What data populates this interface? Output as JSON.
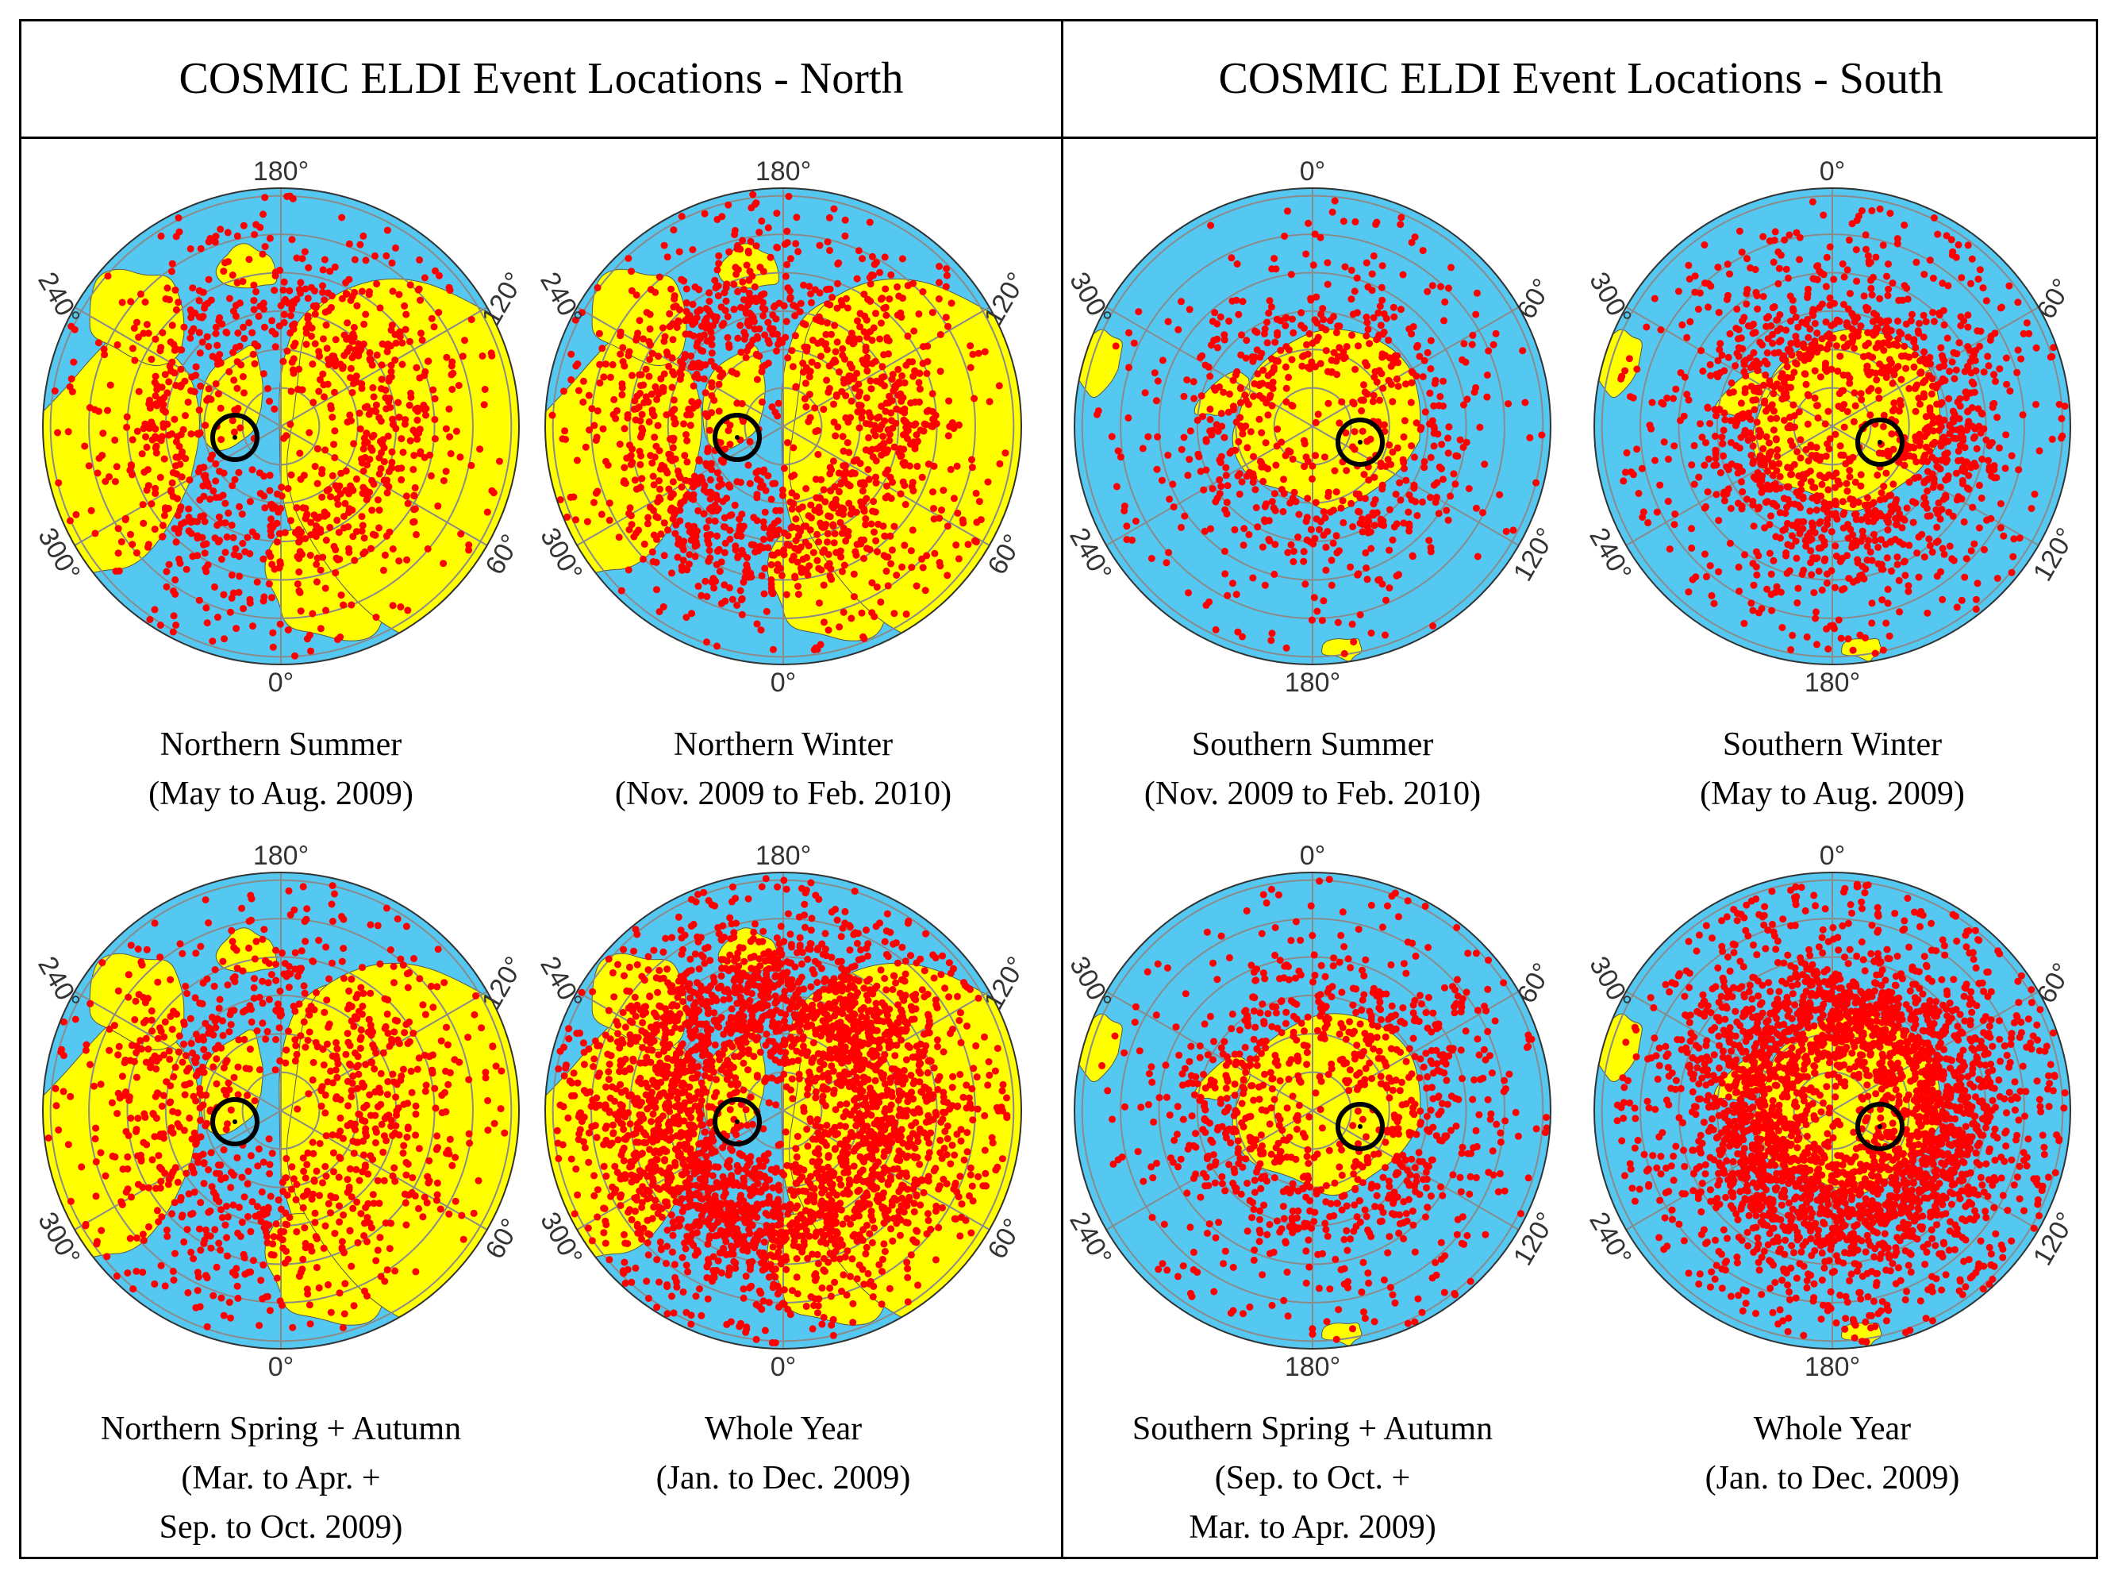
{
  "header": {
    "north_title": "COSMIC ELDI Event Locations - North",
    "south_title": "COSMIC ELDI Event Locations - South"
  },
  "colors": {
    "ocean": "#55c8f2",
    "land": "#ffff00",
    "events": "#ff0000",
    "grid": "#8a8a8a",
    "target_circle": "#000000"
  },
  "panels": [
    {
      "hemisphere": "north",
      "caption": [
        "Northern Summer",
        "(May to Aug. 2009)"
      ],
      "longitude_labels": [
        "180°",
        "120°",
        "60°",
        "0°",
        "300°",
        "240°"
      ],
      "event_density": "moderate"
    },
    {
      "hemisphere": "north",
      "caption": [
        "Northern Winter",
        "(Nov. 2009 to Feb. 2010)"
      ],
      "longitude_labels": [
        "180°",
        "120°",
        "60°",
        "0°",
        "300°",
        "240°"
      ],
      "event_density": "high"
    },
    {
      "hemisphere": "south",
      "caption": [
        "Southern Summer",
        "(Nov. 2009 to Feb. 2010)"
      ],
      "longitude_labels": [
        "0°",
        "60°",
        "120°",
        "180°",
        "240°",
        "300°"
      ],
      "event_density": "low"
    },
    {
      "hemisphere": "south",
      "caption": [
        "Southern Winter",
        "(May to Aug. 2009)"
      ],
      "longitude_labels": [
        "0°",
        "60°",
        "120°",
        "180°",
        "240°",
        "300°"
      ],
      "event_density": "high"
    },
    {
      "hemisphere": "north",
      "caption": [
        "Northern Spring + Autumn",
        "(Mar. to Apr. +",
        "Sep. to Oct. 2009)"
      ],
      "longitude_labels": [
        "180°",
        "120°",
        "60°",
        "0°",
        "300°",
        "240°"
      ],
      "event_density": "moderate"
    },
    {
      "hemisphere": "north",
      "caption": [
        "Whole Year",
        "(Jan. to Dec. 2009)"
      ],
      "longitude_labels": [
        "180°",
        "120°",
        "60°",
        "0°",
        "300°",
        "240°"
      ],
      "event_density": "very high"
    },
    {
      "hemisphere": "south",
      "caption": [
        "Southern Spring + Autumn",
        "(Sep. to Oct. +",
        "Mar. to Apr. 2009)"
      ],
      "longitude_labels": [
        "0°",
        "60°",
        "120°",
        "180°",
        "240°",
        "300°"
      ],
      "event_density": "moderate"
    },
    {
      "hemisphere": "south",
      "caption": [
        "Whole Year",
        "(Jan. to Dec. 2009)"
      ],
      "longitude_labels": [
        "0°",
        "60°",
        "120°",
        "180°",
        "240°",
        "300°"
      ],
      "event_density": "very high"
    }
  ],
  "chart_data": {
    "type": "scatter",
    "title": "COSMIC ELDI Event Locations",
    "projection": "polar stereographic",
    "series": [
      {
        "name": "Northern Summer (May to Aug. 2009)",
        "approx_event_count": 900
      },
      {
        "name": "Northern Winter (Nov. 2009 to Feb. 2010)",
        "approx_event_count": 1300
      },
      {
        "name": "Southern Summer (Nov. 2009 to Feb. 2010)",
        "approx_event_count": 700
      },
      {
        "name": "Southern Winter (May to Aug. 2009)",
        "approx_event_count": 2000
      },
      {
        "name": "Northern Spring + Autumn (Mar. to Apr. + Sep. to Oct. 2009)",
        "approx_event_count": 1100
      },
      {
        "name": "Northern Whole Year (Jan. to Dec. 2009)",
        "approx_event_count": 3000
      },
      {
        "name": "Southern Spring + Autumn (Sep. to Oct. + Mar. to Apr. 2009)",
        "approx_event_count": 1000
      },
      {
        "name": "Southern Whole Year (Jan. to Dec. 2009)",
        "approx_event_count": 3500
      }
    ]
  }
}
